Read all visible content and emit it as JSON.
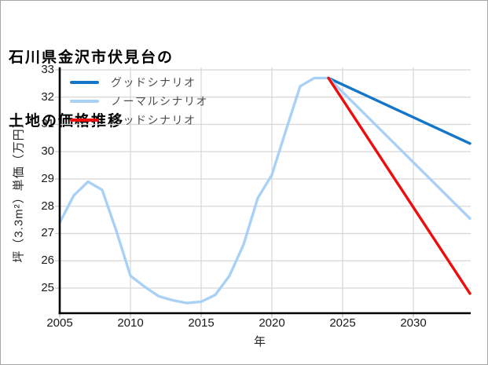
{
  "title": {
    "line1": "石川県金沢市伏見台の",
    "line2": "土地の価格推移"
  },
  "legend": {
    "items": [
      {
        "label": "グッドシナリオ",
        "color": "#1576c8"
      },
      {
        "label": "ノーマルシナリオ",
        "color": "#a9d1f5"
      },
      {
        "label": "バッドシナリオ",
        "color": "#ee0d0d"
      }
    ]
  },
  "axes": {
    "xlabel": "年",
    "ylabel": "坪（3.3m²）単価（万円）",
    "xticks": [
      "2005",
      "2010",
      "2015",
      "2020",
      "2025",
      "2030"
    ],
    "yticks": [
      "33",
      "32",
      "31",
      "30",
      "29",
      "28",
      "27",
      "26",
      "25"
    ]
  },
  "chart_data": {
    "type": "line",
    "title": "石川県金沢市伏見台の土地の価格推移",
    "xlabel": "年",
    "ylabel": "坪（3.3m²）単価（万円）",
    "xlim": [
      2005,
      2034.3
    ],
    "ylim": [
      24.1,
      33.1
    ],
    "xticks": [
      2005,
      2010,
      2015,
      2020,
      2025,
      2030
    ],
    "yticks": [
      25,
      26,
      27,
      28,
      29,
      30,
      31,
      32,
      33
    ],
    "grid": true,
    "legend_position": "upper-left",
    "colors": {
      "good": "#1576c8",
      "normal": "#a9d1f5",
      "bad": "#ee0d0d",
      "grid": "#d6d6d6",
      "spine": "#000000"
    },
    "series": [
      {
        "key": "historical",
        "legend_label": null,
        "color_ref": "normal",
        "x": [
          2005,
          2006,
          2007,
          2008,
          2009,
          2010,
          2011,
          2012,
          2013,
          2014,
          2015,
          2016,
          2017,
          2018,
          2019,
          2020,
          2021,
          2022,
          2023,
          2024
        ],
        "y": [
          27.4,
          28.4,
          28.9,
          28.6,
          27.1,
          25.45,
          25.05,
          24.7,
          24.55,
          24.45,
          24.5,
          24.75,
          25.45,
          26.6,
          28.3,
          29.15,
          30.8,
          32.4,
          32.7,
          32.7
        ]
      },
      {
        "key": "good-scenario",
        "legend_label": "グッドシナリオ",
        "color_ref": "good",
        "x": [
          2024,
          2034
        ],
        "y": [
          32.7,
          30.3
        ]
      },
      {
        "key": "normal-scenario",
        "legend_label": "ノーマルシナリオ",
        "color_ref": "normal",
        "x": [
          2024,
          2034
        ],
        "y": [
          32.7,
          27.55
        ]
      },
      {
        "key": "bad-scenario",
        "legend_label": "バッドシナリオ",
        "color_ref": "bad",
        "x": [
          2024,
          2034
        ],
        "y": [
          32.7,
          24.8
        ]
      }
    ]
  }
}
